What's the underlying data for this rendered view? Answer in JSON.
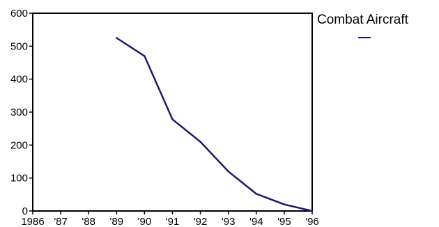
{
  "chart_data": {
    "type": "line",
    "categories": [
      "1986",
      "'87",
      "'88",
      "'89",
      "'90",
      "'91",
      "'92",
      "'93",
      "'94",
      "'95",
      "'96"
    ],
    "series": [
      {
        "name": "Combat Aircraft",
        "color": "#1a1a6e",
        "values": [
          null,
          null,
          null,
          525,
          470,
          278,
          210,
          120,
          52,
          20,
          0
        ]
      }
    ],
    "yticks": [
      "0",
      "100",
      "200",
      "300",
      "400",
      "500",
      "600"
    ],
    "ylim": [
      0,
      600
    ],
    "grid": false,
    "legend_position": "right"
  }
}
